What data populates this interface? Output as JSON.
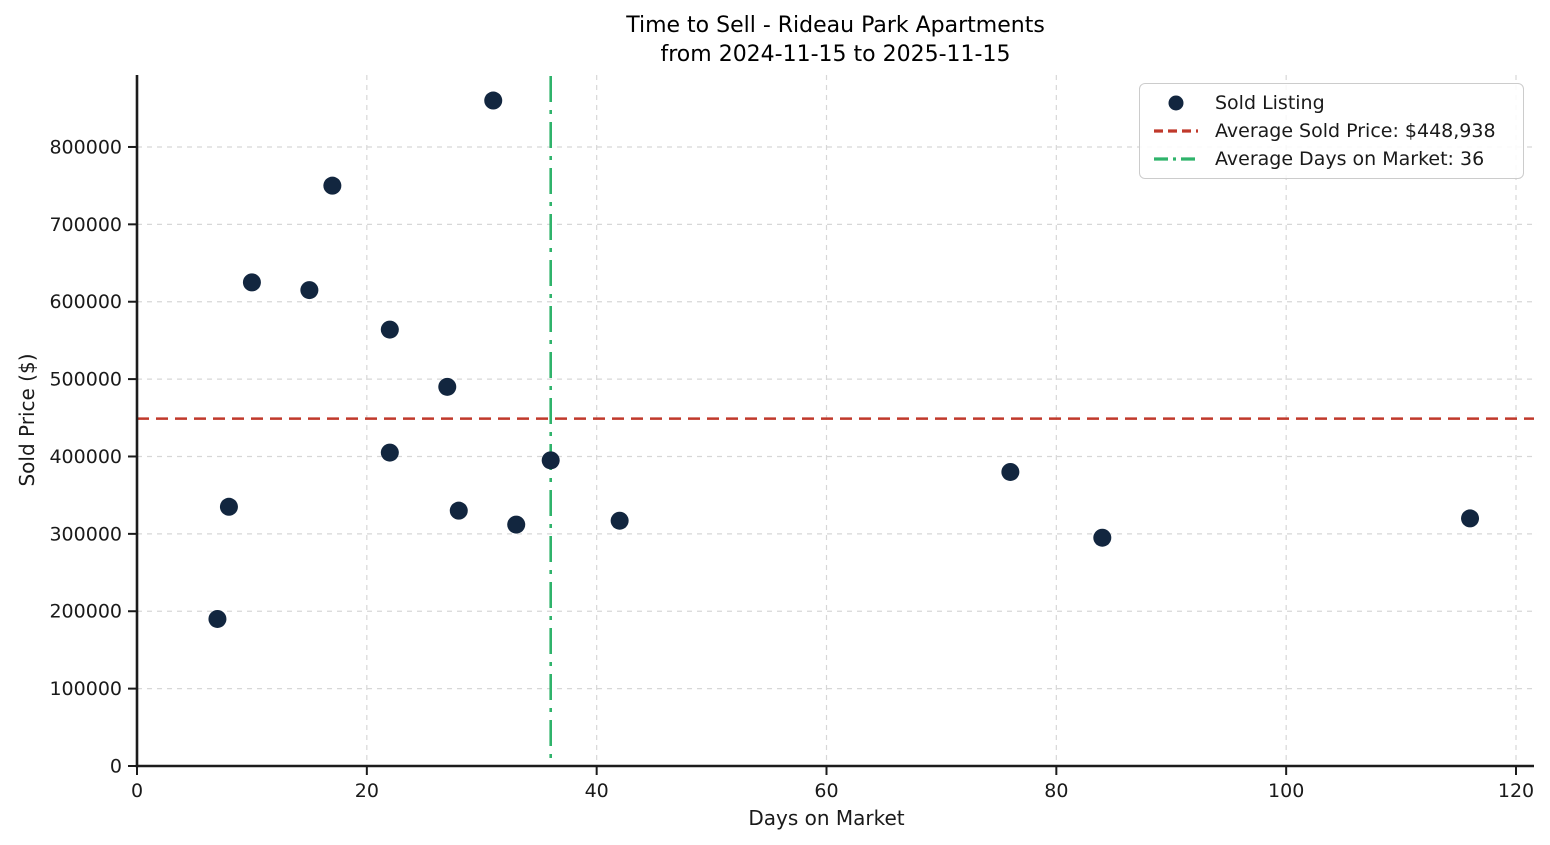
{
  "figure": {
    "title_line1": "Time to Sell - Rideau Park Apartments",
    "title_line2": "from 2024-11-15 to 2025-11-15",
    "xlabel": "Days on Market",
    "ylabel": "Sold Price ($)"
  },
  "legend": {
    "items": [
      {
        "label": "Sold Listing",
        "marker": "dot-marker"
      },
      {
        "label": "Average Sold Price: $448,938",
        "marker": "dashed-line-marker"
      },
      {
        "label": "Average Days on Market: 36",
        "marker": "dashdot-line-marker"
      }
    ]
  },
  "colors": {
    "point": "#12263F",
    "avg_price_line": "#C0392B",
    "avg_days_line": "#2FB36B",
    "grid": "#D7D7D7",
    "spine": "#1C1C1C",
    "text": "#1A1A1A",
    "legend_border": "#CCCCCC"
  },
  "chart_data": {
    "type": "scatter",
    "title": "Time to Sell - Rideau Park Apartments from 2024-11-15 to 2025-11-15",
    "xlabel": "Days on Market",
    "ylabel": "Sold Price ($)",
    "series": [
      {
        "name": "Sold Listing",
        "points": [
          [
            7,
            190000
          ],
          [
            8,
            335000
          ],
          [
            10,
            625000
          ],
          [
            15,
            615000
          ],
          [
            17,
            750000
          ],
          [
            22,
            564000
          ],
          [
            22,
            405000
          ],
          [
            27,
            490000
          ],
          [
            28,
            330000
          ],
          [
            31,
            860000
          ],
          [
            33,
            312000
          ],
          [
            36,
            395000
          ],
          [
            42,
            317000
          ],
          [
            76,
            380000
          ],
          [
            84,
            295000
          ],
          [
            116,
            320000
          ]
        ]
      }
    ],
    "reference_lines": [
      {
        "axis": "y",
        "value": 448938,
        "label": "Average Sold Price: $448,938",
        "style": "dashed"
      },
      {
        "axis": "x",
        "value": 36,
        "label": "Average Days on Market: 36",
        "style": "dashdot"
      }
    ],
    "xlim": [
      0,
      121.3
    ],
    "ylim": [
      0,
      893000
    ],
    "x_ticks": [
      0,
      20,
      40,
      60,
      80,
      100,
      120
    ],
    "y_ticks": [
      0,
      100000,
      200000,
      300000,
      400000,
      500000,
      600000,
      700000,
      800000
    ],
    "grid": true,
    "legend_position": "upper right"
  }
}
